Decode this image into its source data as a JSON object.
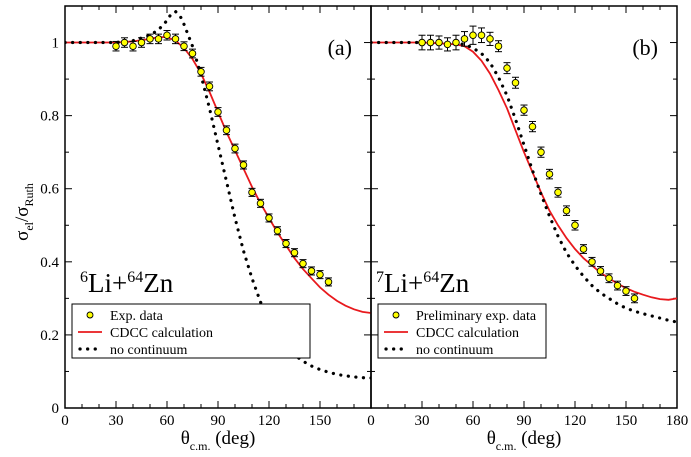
{
  "chart_data": [
    {
      "panel_label": "(a)",
      "type": "scatter",
      "reaction": {
        "a1": "6",
        "el1": "Li+",
        "a2": "64",
        "el2": "Zn"
      },
      "xlim": [
        0,
        180
      ],
      "ylim": [
        0,
        1.1
      ],
      "x_ticks": [
        0,
        30,
        60,
        90,
        120,
        150
      ],
      "y_ticks": [
        0,
        0.2,
        0.4,
        0.6,
        0.8,
        1
      ],
      "y_tick_labels": [
        "0",
        "0.2",
        "0.4",
        "0.6",
        "0.8",
        "1"
      ],
      "legend_position": "bottom-left",
      "series": [
        {
          "name": "Exp. data",
          "kind": "points",
          "color": "#ffff00",
          "edge": "#000000",
          "x": [
            30,
            35,
            40,
            45,
            50,
            55,
            60,
            65,
            70,
            75,
            80,
            85,
            90,
            95,
            100,
            105,
            110,
            115,
            120,
            125,
            130,
            135,
            140,
            145,
            150,
            155
          ],
          "y": [
            0.99,
            1.0,
            0.99,
            1.0,
            1.01,
            1.01,
            1.02,
            1.01,
            0.99,
            0.97,
            0.92,
            0.88,
            0.81,
            0.76,
            0.71,
            0.665,
            0.59,
            0.56,
            0.52,
            0.485,
            0.45,
            0.425,
            0.395,
            0.375,
            0.365,
            0.345
          ],
          "err": [
            0.013,
            0.013,
            0.013,
            0.013,
            0.013,
            0.013,
            0.013,
            0.013,
            0.012,
            0.012,
            0.012,
            0.012,
            0.012,
            0.012,
            0.012,
            0.011,
            0.011,
            0.011,
            0.011,
            0.011,
            0.011,
            0.011,
            0.011,
            0.011,
            0.011,
            0.011
          ]
        },
        {
          "name": "CDCC calculation",
          "kind": "line",
          "color": "#e8191d",
          "x": [
            0,
            10,
            20,
            30,
            40,
            50,
            55,
            60,
            65,
            70,
            75,
            80,
            85,
            90,
            95,
            100,
            105,
            110,
            115,
            120,
            125,
            130,
            135,
            140,
            145,
            150,
            155,
            160,
            165,
            170,
            175,
            180
          ],
          "y": [
            1.0,
            1.0,
            1.0,
            1.0,
            1.003,
            1.01,
            1.015,
            1.015,
            1.005,
            0.985,
            0.955,
            0.915,
            0.865,
            0.81,
            0.755,
            0.705,
            0.655,
            0.605,
            0.56,
            0.52,
            0.48,
            0.445,
            0.41,
            0.38,
            0.355,
            0.33,
            0.31,
            0.293,
            0.28,
            0.27,
            0.263,
            0.26
          ]
        },
        {
          "name": "no continuum",
          "kind": "dots",
          "color": "#000000",
          "x": [
            0,
            10,
            20,
            30,
            40,
            50,
            55,
            60,
            62,
            65,
            68,
            70,
            75,
            80,
            85,
            90,
            95,
            100,
            105,
            110,
            115,
            120,
            125,
            130,
            135,
            140,
            145,
            150,
            155,
            160,
            165,
            170,
            175,
            180
          ],
          "y": [
            1.0,
            1.0,
            1.0,
            1.0,
            1.005,
            1.02,
            1.035,
            1.06,
            1.075,
            1.085,
            1.07,
            1.05,
            0.99,
            0.91,
            0.82,
            0.72,
            0.62,
            0.52,
            0.43,
            0.355,
            0.29,
            0.24,
            0.2,
            0.17,
            0.145,
            0.128,
            0.115,
            0.105,
            0.098,
            0.092,
            0.088,
            0.085,
            0.083,
            0.082
          ]
        }
      ]
    },
    {
      "panel_label": "(b)",
      "type": "scatter",
      "reaction": {
        "a1": "7",
        "el1": "Li+",
        "a2": "64",
        "el2": "Zn"
      },
      "xlim": [
        0,
        180
      ],
      "ylim": [
        0,
        1.1
      ],
      "x_ticks": [
        0,
        30,
        60,
        90,
        120,
        150,
        180
      ],
      "y_ticks": [
        0,
        0.2,
        0.4,
        0.6,
        0.8,
        1
      ],
      "legend_position": "bottom-left",
      "series": [
        {
          "name": "Preliminary exp. data",
          "kind": "points",
          "color": "#ffff00",
          "edge": "#000000",
          "x": [
            30,
            35,
            40,
            45,
            50,
            55,
            60,
            65,
            70,
            75,
            80,
            85,
            90,
            95,
            100,
            105,
            110,
            115,
            120,
            125,
            130,
            135,
            140,
            145,
            150,
            155
          ],
          "y": [
            1.0,
            1.0,
            1.0,
            0.995,
            1.0,
            1.01,
            1.02,
            1.02,
            1.01,
            0.99,
            0.93,
            0.89,
            0.815,
            0.77,
            0.7,
            0.64,
            0.59,
            0.54,
            0.5,
            0.435,
            0.4,
            0.375,
            0.355,
            0.335,
            0.32,
            0.3
          ],
          "err": [
            0.02,
            0.02,
            0.018,
            0.018,
            0.02,
            0.02,
            0.025,
            0.02,
            0.018,
            0.015,
            0.015,
            0.015,
            0.014,
            0.014,
            0.014,
            0.013,
            0.013,
            0.013,
            0.013,
            0.012,
            0.012,
            0.012,
            0.012,
            0.012,
            0.012,
            0.012
          ]
        },
        {
          "name": "CDCC calculation",
          "kind": "line",
          "color": "#e8191d",
          "x": [
            0,
            10,
            20,
            30,
            40,
            50,
            55,
            60,
            65,
            70,
            75,
            80,
            85,
            90,
            95,
            100,
            105,
            110,
            115,
            120,
            125,
            130,
            135,
            140,
            145,
            150,
            155,
            160,
            165,
            170,
            175,
            180
          ],
          "y": [
            1.0,
            1.0,
            1.0,
            1.0,
            0.998,
            0.995,
            0.99,
            0.975,
            0.95,
            0.915,
            0.87,
            0.82,
            0.76,
            0.7,
            0.645,
            0.59,
            0.54,
            0.5,
            0.465,
            0.435,
            0.41,
            0.39,
            0.37,
            0.355,
            0.34,
            0.328,
            0.318,
            0.31,
            0.303,
            0.298,
            0.296,
            0.3
          ]
        },
        {
          "name": "no continuum",
          "kind": "dots",
          "color": "#000000",
          "x": [
            0,
            10,
            20,
            30,
            40,
            50,
            55,
            60,
            65,
            70,
            75,
            80,
            85,
            90,
            95,
            100,
            105,
            110,
            115,
            120,
            125,
            130,
            135,
            140,
            145,
            150,
            155,
            160,
            165,
            170,
            175,
            180
          ],
          "y": [
            1.0,
            1.0,
            1.0,
            1.0,
            1.0,
            0.998,
            0.995,
            0.985,
            0.97,
            0.945,
            0.905,
            0.855,
            0.79,
            0.72,
            0.65,
            0.585,
            0.525,
            0.47,
            0.425,
            0.39,
            0.36,
            0.335,
            0.315,
            0.3,
            0.285,
            0.273,
            0.265,
            0.258,
            0.252,
            0.246,
            0.24,
            0.235
          ]
        }
      ]
    }
  ]
}
